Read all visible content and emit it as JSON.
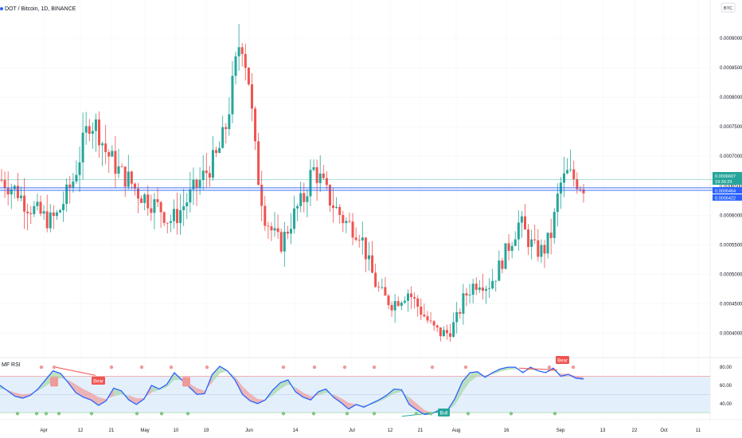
{
  "header": {
    "symbol_title": "DOT / Bitcoin, 1D, BINANCE",
    "currency_badge": "BTC"
  },
  "indicator": {
    "title": "MF RSI",
    "labels": {
      "bear": "Bear",
      "bull": "Bull"
    }
  },
  "price_labels": {
    "last_price": "0.0006607",
    "countdown": "19:36:29",
    "level_1": "0.0006464",
    "level_2": "0.0006422"
  },
  "colors": {
    "up": "#26a69a",
    "down": "#ef5350",
    "rsi_line": "#2962ff",
    "band_fill": "#e3f0fc",
    "level_blue": "#2962ff",
    "last_price_bg": "#26a69a"
  },
  "chart_data": [
    {
      "type": "candlestick",
      "title": "DOT / Bitcoin, 1D, BINANCE",
      "y_unit": "BTC",
      "ylim": [
        0.00036,
        0.000965
      ],
      "y_ticks": [
        "0.0009000",
        "0.0008500",
        "0.0008000",
        "0.0007500",
        "0.0007000",
        "0.0006500",
        "0.0006000",
        "0.0005500",
        "0.0005000",
        "0.0004500",
        "0.0004000"
      ],
      "y_tick_values": [
        0.0009,
        0.00085,
        0.0008,
        0.00075,
        0.0007,
        0.00065,
        0.0006,
        0.00055,
        0.0005,
        0.00045,
        0.0004
      ],
      "x_ticks": [
        "Apr",
        "12",
        "21",
        "May",
        "10",
        "19",
        "Jun",
        "14",
        "Jul",
        "12",
        "21",
        "Aug",
        "16",
        "Sep",
        "13",
        "22",
        "Oct",
        "11"
      ],
      "horizontal_levels": [
        0.0006607,
        0.0006464,
        0.0006422
      ],
      "approx_close_series": [
        0.00066,
        0.00065,
        0.00064,
        0.00062,
        0.00061,
        0.0006,
        0.00059,
        0.0006,
        0.00063,
        0.00066,
        0.00071,
        0.00076,
        0.00075,
        0.00071,
        0.00069,
        0.00067,
        0.00066,
        0.00064,
        0.00063,
        0.00062,
        0.00061,
        0.00059,
        0.0006,
        0.00062,
        0.00064,
        0.00066,
        0.00068,
        0.0007,
        0.00074,
        0.00082,
        0.00091,
        0.00083,
        0.00068,
        0.0006,
        0.00057,
        0.00055,
        0.00058,
        0.00061,
        0.00063,
        0.00068,
        0.00066,
        0.00063,
        0.00061,
        0.00059,
        0.00058,
        0.00057,
        0.00052,
        0.00048,
        0.00046,
        0.00045,
        0.00046,
        0.00047,
        0.00045,
        0.00043,
        0.00041,
        0.0004,
        0.0004,
        0.00042,
        0.00046,
        0.00048,
        0.00049,
        0.00048,
        0.0005,
        0.00053,
        0.00056,
        0.00059,
        0.00056,
        0.00054,
        0.00054,
        0.00057,
        0.00065,
        0.00067,
        0.00066,
        0.00065
      ]
    },
    {
      "type": "line",
      "title": "MF RSI",
      "ylim": [
        24,
        88
      ],
      "y_ticks": [
        "80.00",
        "60.00",
        "40.00"
      ],
      "y_tick_values": [
        80,
        60,
        40
      ],
      "bands": [
        70,
        50,
        30
      ],
      "rsi_values": [
        60,
        54,
        48,
        46,
        49,
        56,
        66,
        76,
        73,
        63,
        52,
        47,
        44,
        38,
        43,
        57,
        54,
        44,
        39,
        45,
        60,
        56,
        61,
        74,
        66,
        58,
        50,
        51,
        72,
        81,
        76,
        66,
        50,
        43,
        40,
        44,
        55,
        63,
        66,
        53,
        47,
        44,
        53,
        56,
        47,
        41,
        34,
        39,
        36,
        40,
        44,
        49,
        56,
        55,
        39,
        33,
        28,
        29,
        33,
        32,
        45,
        64,
        74,
        75,
        69,
        74,
        78,
        80,
        80,
        74,
        80,
        76,
        74,
        79,
        70,
        72,
        68,
        67
      ],
      "ma_values": [
        56,
        55,
        52,
        50,
        51,
        54,
        59,
        65,
        68,
        66,
        61,
        56,
        52,
        47,
        45,
        48,
        50,
        49,
        46,
        46,
        52,
        55,
        58,
        66,
        66,
        62,
        57,
        54,
        63,
        73,
        76,
        70,
        59,
        51,
        45,
        44,
        49,
        56,
        61,
        58,
        52,
        48,
        49,
        52,
        50,
        46,
        41,
        39,
        38,
        39,
        42,
        46,
        51,
        53,
        47,
        40,
        33,
        30,
        31,
        32,
        38,
        52,
        64,
        70,
        71,
        72,
        75,
        77,
        78,
        76,
        77,
        76,
        75,
        76,
        73,
        73,
        70,
        69
      ],
      "annotations": [
        "Bear",
        "Bear",
        "Bull"
      ]
    }
  ]
}
